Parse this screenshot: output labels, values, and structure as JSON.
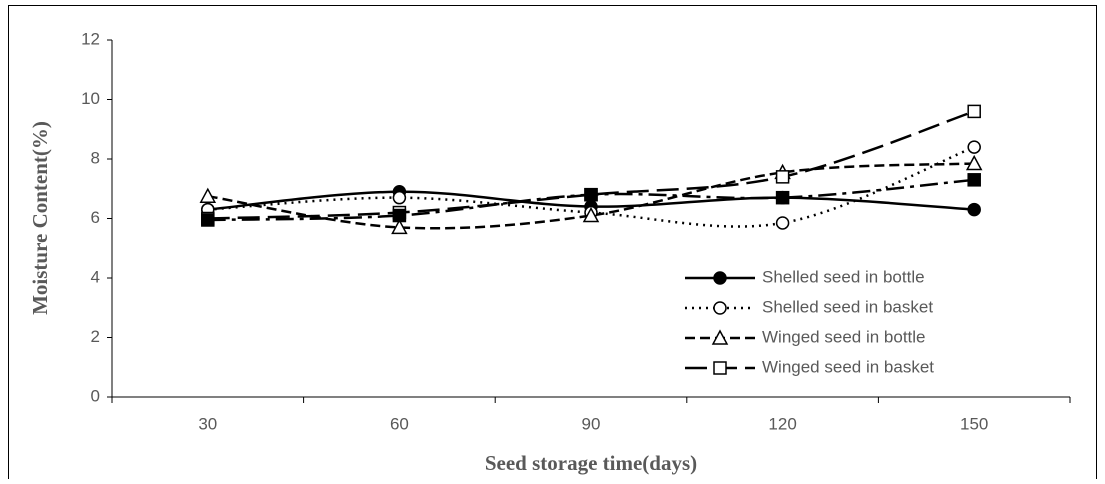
{
  "chart_data": {
    "type": "line",
    "x_label": "Seed storage time(days)",
    "y_label": "Moisture Content(%)",
    "categories": [
      "30",
      "60",
      "90",
      "120",
      "150"
    ],
    "series": [
      {
        "name": "Shelled seed in bottle",
        "color": "#000000",
        "dash": "solid",
        "marker": "circle",
        "marker_fill": "#000000",
        "smooth": true,
        "values": [
          6.3,
          6.9,
          6.4,
          6.7,
          6.3
        ]
      },
      {
        "name": "Shelled seed in basket",
        "color": "#000000",
        "dash": "dot",
        "marker": "circle",
        "marker_fill": "#ffffff",
        "smooth": true,
        "values": [
          6.3,
          6.7,
          6.2,
          5.85,
          8.4
        ]
      },
      {
        "name": "Winged seed in bottle",
        "color": "#000000",
        "dash": "dash",
        "marker": "triangle",
        "marker_fill": "#ffffff",
        "smooth": true,
        "values": [
          6.75,
          5.7,
          6.1,
          7.55,
          7.85
        ]
      },
      {
        "name": "Winged seed in basket",
        "color": "#000000",
        "dash": "longdash",
        "marker": "square",
        "marker_fill": "#ffffff",
        "smooth": true,
        "values": [
          6.0,
          6.2,
          6.8,
          7.4,
          9.6
        ]
      },
      {
        "color": "#000000",
        "dash": "dashdot",
        "marker": "square",
        "marker_fill": "#000000",
        "smooth": true,
        "values": [
          5.95,
          6.1,
          6.8,
          6.7,
          7.3
        ]
      }
    ],
    "ylim": [
      0,
      12
    ],
    "yticks": [
      0,
      2,
      4,
      6,
      8,
      10,
      12
    ],
    "grid": false,
    "legend": "lower-right"
  }
}
